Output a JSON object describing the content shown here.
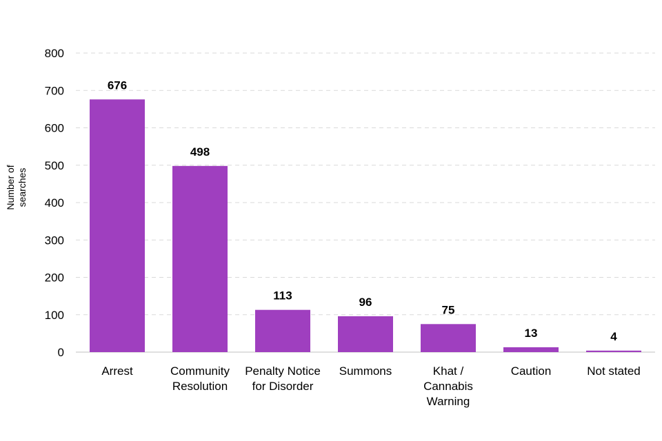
{
  "chart_data": {
    "type": "bar",
    "title": "",
    "xlabel": "",
    "ylabel": [
      "Number of",
      "searches"
    ],
    "ylim": [
      0,
      800
    ],
    "yticks": [
      0,
      100,
      200,
      300,
      400,
      500,
      600,
      700,
      800
    ],
    "grid": true,
    "categories": [
      [
        "Arrest"
      ],
      [
        "Community",
        "Resolution"
      ],
      [
        "Penalty Notice",
        "for Disorder"
      ],
      [
        "Summons"
      ],
      [
        "Khat /",
        "Cannabis",
        "Warning"
      ],
      [
        "Caution"
      ],
      [
        "Not stated"
      ]
    ],
    "values": [
      676,
      498,
      113,
      96,
      75,
      13,
      4
    ],
    "bar_color": "#9f3fbf"
  }
}
